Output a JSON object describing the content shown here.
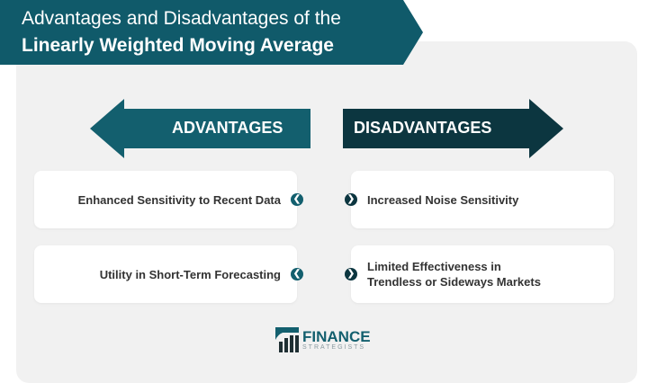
{
  "title": {
    "line1": "Advantages and Disadvantages of the",
    "line2": "Linearly Weighted Moving Average"
  },
  "advantages": {
    "label": "ADVANTAGES",
    "items": [
      "Enhanced Sensitivity to Recent Data",
      "Utility in Short-Term Forecasting"
    ]
  },
  "disadvantages": {
    "label": "DISADVANTAGES",
    "items": [
      "Increased Noise Sensitivity",
      "Limited Effectiveness in Trendless or Sideways Markets"
    ]
  },
  "logo": {
    "line1": "FINANCE",
    "line2": "STRATEGISTS"
  },
  "colors": {
    "teal": "#135f6e",
    "dark_teal": "#0c3640",
    "background": "#f1f1f1"
  }
}
